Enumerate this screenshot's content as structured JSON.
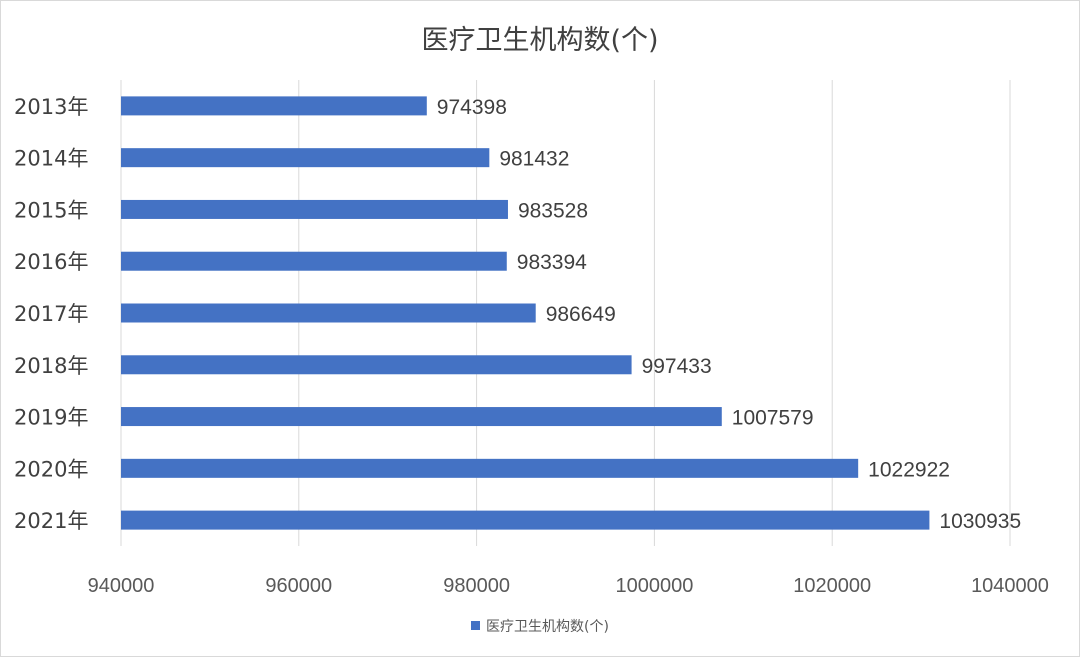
{
  "chart_data": {
    "type": "bar",
    "orientation": "horizontal",
    "title": "医疗卫生机构数(个)",
    "categories": [
      "2013年",
      "2014年",
      "2015年",
      "2016年",
      "2017年",
      "2018年",
      "2019年",
      "2020年",
      "2021年"
    ],
    "series": [
      {
        "name": "医疗卫生机构数(个)",
        "color": "#4472c4",
        "values": [
          974398,
          981432,
          983528,
          983394,
          986649,
          997433,
          1007579,
          1022922,
          1030935
        ]
      }
    ],
    "x_ticks": [
      "940000",
      "960000",
      "980000",
      "1000000",
      "1020000",
      "1040000"
    ],
    "xlim": [
      940000,
      1040000
    ],
    "grid": true,
    "legend_position": "bottom"
  }
}
